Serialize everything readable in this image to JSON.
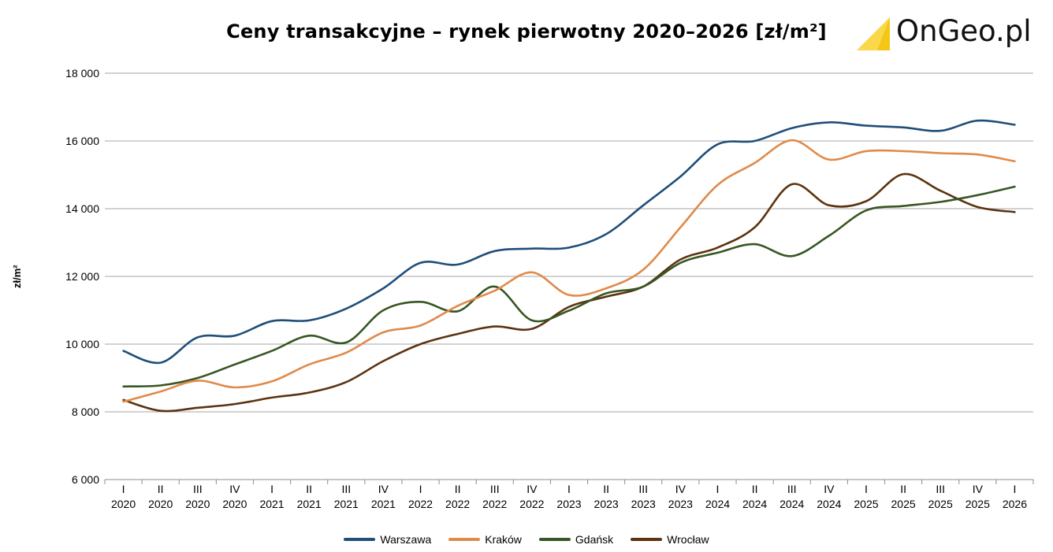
{
  "chart_data": {
    "type": "line",
    "title": "Ceny transakcyjne – rynek pierwotny 2020–2026 [zł/m²]",
    "xlabel": "",
    "ylabel": "zł/m²",
    "ylim": [
      6000,
      18000
    ],
    "yticks": [
      6000,
      8000,
      10000,
      12000,
      14000,
      16000,
      18000
    ],
    "ytick_labels": [
      "6 000",
      "8 000",
      "10 000",
      "12 000",
      "14 000",
      "16 000",
      "18 000"
    ],
    "grid": true,
    "legend": "bottom",
    "categories": [
      {
        "q": "I",
        "y": "2020"
      },
      {
        "q": "II",
        "y": "2020"
      },
      {
        "q": "III",
        "y": "2020"
      },
      {
        "q": "IV",
        "y": "2020"
      },
      {
        "q": "I",
        "y": "2021"
      },
      {
        "q": "II",
        "y": "2021"
      },
      {
        "q": "III",
        "y": "2021"
      },
      {
        "q": "IV",
        "y": "2021"
      },
      {
        "q": "I",
        "y": "2022"
      },
      {
        "q": "II",
        "y": "2022"
      },
      {
        "q": "III",
        "y": "2022"
      },
      {
        "q": "IV",
        "y": "2022"
      },
      {
        "q": "I",
        "y": "2023"
      },
      {
        "q": "II",
        "y": "2023"
      },
      {
        "q": "III",
        "y": "2023"
      },
      {
        "q": "IV",
        "y": "2023"
      },
      {
        "q": "I",
        "y": "2024"
      },
      {
        "q": "II",
        "y": "2024"
      },
      {
        "q": "III",
        "y": "2024"
      },
      {
        "q": "IV",
        "y": "2024"
      },
      {
        "q": "I",
        "y": "2025"
      },
      {
        "q": "II",
        "y": "2025"
      },
      {
        "q": "III",
        "y": "2025"
      },
      {
        "q": "IV",
        "y": "2025"
      },
      {
        "q": "I",
        "y": "2026"
      }
    ],
    "series": [
      {
        "name": "Warszawa",
        "color": "#1f4e79",
        "values": [
          9800,
          9450,
          10200,
          10250,
          10680,
          10700,
          11050,
          11650,
          12400,
          12350,
          12750,
          12820,
          12850,
          13250,
          14100,
          14950,
          15900,
          16000,
          16380,
          16550,
          16450,
          16400,
          16300,
          16600,
          16480
        ]
      },
      {
        "name": "Kraków",
        "color": "#e08a4a",
        "values": [
          8300,
          8600,
          8920,
          8720,
          8900,
          9400,
          9750,
          10350,
          10550,
          11130,
          11580,
          12120,
          11450,
          11650,
          12200,
          13450,
          14700,
          15350,
          16020,
          15450,
          15700,
          15700,
          15640,
          15600,
          15400
        ]
      },
      {
        "name": "Gdańsk",
        "color": "#375623",
        "values": [
          8750,
          8780,
          9000,
          9400,
          9800,
          10250,
          10050,
          11000,
          11250,
          10970,
          11700,
          10700,
          10990,
          11500,
          11700,
          12400,
          12700,
          12950,
          12600,
          13200,
          13950,
          14080,
          14200,
          14400,
          14650
        ]
      },
      {
        "name": "Wrocław",
        "color": "#5c3310",
        "values": [
          8350,
          8030,
          8120,
          8230,
          8420,
          8570,
          8880,
          9500,
          10000,
          10300,
          10520,
          10450,
          11100,
          11400,
          11700,
          12500,
          12850,
          13450,
          14720,
          14100,
          14220,
          15020,
          14530,
          14050,
          13900
        ]
      }
    ]
  },
  "logo": {
    "text": "OnGeo.pl",
    "color": "#f5c518"
  }
}
